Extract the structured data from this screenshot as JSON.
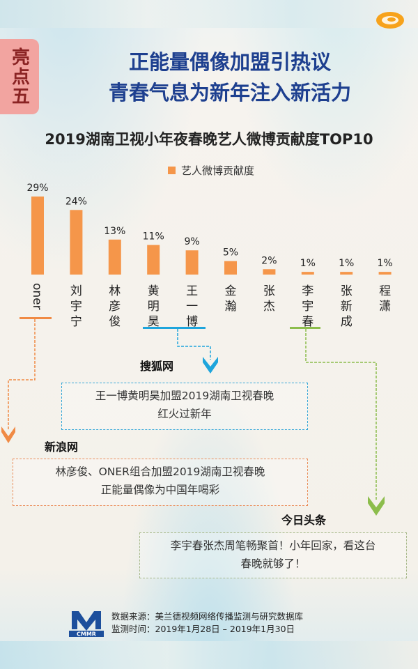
{
  "side_tag": "亮点五",
  "headline": {
    "line1": "正能量偶像加盟引热议",
    "line2": "青春气息为新年注入新活力"
  },
  "colors": {
    "bar": "#f5964a",
    "headline": "#1d3f8f",
    "tag": "#f2a4a0"
  },
  "chart_data": {
    "type": "bar",
    "title": "2019湖南卫视小年夜春晚艺人微博贡献度TOP10",
    "legend": "艺人微博贡献度",
    "categories": [
      "oner",
      "刘宇宁",
      "林彦俊",
      "黄明昊",
      "王一博",
      "金瀚",
      "张杰",
      "李宇春",
      "张新成",
      "程潇"
    ],
    "values": [
      29,
      24,
      13,
      11,
      9,
      5,
      2,
      1,
      1,
      1
    ],
    "value_labels": [
      "29%",
      "24%",
      "13%",
      "11%",
      "9%",
      "5%",
      "2%",
      "1%",
      "1%",
      "1%"
    ],
    "unit": "%"
  },
  "sources": {
    "sohu": {
      "name": "搜狐网",
      "line1": "王一博黄明昊加盟2019湖南卫视春晚",
      "line2": "红火过新年"
    },
    "sina": {
      "name": "新浪网",
      "line1": "林彦俊、ONER组合加盟2019湖南卫视春晚",
      "line2": "正能量偶像为中国年喝彩"
    },
    "toutiao": {
      "name": "今日头条",
      "line1": "李宇春张杰周笔畅聚首！小年回家，看这台",
      "line2": "春晚就够了！"
    }
  },
  "footer": {
    "logo_text": "CMMR",
    "source": "数据来源：美兰德视频网络传播监测与研究数据库",
    "period": "监测时间：2019年1月28日 – 2019年1月30日"
  }
}
